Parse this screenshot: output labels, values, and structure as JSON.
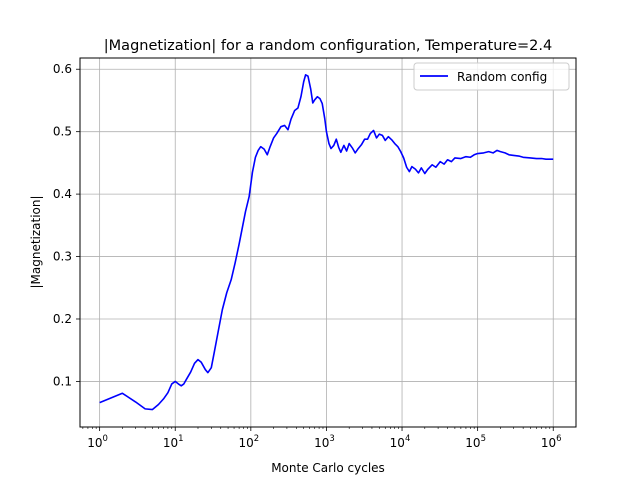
{
  "chart_data": {
    "type": "line",
    "title": "|Magnetization| for a random configuration, Temperature=2.4",
    "xlabel": "Monte Carlo cycles",
    "ylabel": "|Magnetization|",
    "xscale": "log",
    "xlim": [
      0.55,
      2000000
    ],
    "ylim": [
      0.027,
      0.618
    ],
    "grid": true,
    "legend": "top-right",
    "xticks": [
      {
        "value": 1,
        "base": "10",
        "exp": "0"
      },
      {
        "value": 10,
        "base": "10",
        "exp": "1"
      },
      {
        "value": 100,
        "base": "10",
        "exp": "2"
      },
      {
        "value": 1000,
        "base": "10",
        "exp": "3"
      },
      {
        "value": 10000,
        "base": "10",
        "exp": "4"
      },
      {
        "value": 100000,
        "base": "10",
        "exp": "5"
      },
      {
        "value": 1000000,
        "base": "10",
        "exp": "6"
      }
    ],
    "yticks": [
      {
        "value": 0.1,
        "label": "0.1"
      },
      {
        "value": 0.2,
        "label": "0.2"
      },
      {
        "value": 0.3,
        "label": "0.3"
      },
      {
        "value": 0.4,
        "label": "0.4"
      },
      {
        "value": 0.5,
        "label": "0.5"
      },
      {
        "value": 0.6,
        "label": "0.6"
      }
    ],
    "series": [
      {
        "name": "Random config",
        "color": "#0000ff",
        "points": [
          [
            1,
            0.066
          ],
          [
            2,
            0.081
          ],
          [
            3,
            0.067
          ],
          [
            4,
            0.056
          ],
          [
            5,
            0.055
          ],
          [
            6,
            0.063
          ],
          [
            7,
            0.072
          ],
          [
            8,
            0.082
          ],
          [
            9,
            0.096
          ],
          [
            10,
            0.1
          ],
          [
            11,
            0.096
          ],
          [
            12,
            0.093
          ],
          [
            13,
            0.096
          ],
          [
            14,
            0.103
          ],
          [
            16,
            0.115
          ],
          [
            18,
            0.129
          ],
          [
            20,
            0.135
          ],
          [
            22,
            0.131
          ],
          [
            25,
            0.119
          ],
          [
            27,
            0.114
          ],
          [
            30,
            0.122
          ],
          [
            33,
            0.148
          ],
          [
            37,
            0.18
          ],
          [
            42,
            0.215
          ],
          [
            48,
            0.242
          ],
          [
            55,
            0.263
          ],
          [
            62,
            0.29
          ],
          [
            70,
            0.32
          ],
          [
            76,
            0.342
          ],
          [
            85,
            0.372
          ],
          [
            95,
            0.396
          ],
          [
            105,
            0.435
          ],
          [
            115,
            0.459
          ],
          [
            125,
            0.47
          ],
          [
            135,
            0.476
          ],
          [
            150,
            0.472
          ],
          [
            165,
            0.463
          ],
          [
            180,
            0.476
          ],
          [
            200,
            0.49
          ],
          [
            220,
            0.497
          ],
          [
            250,
            0.508
          ],
          [
            280,
            0.51
          ],
          [
            310,
            0.503
          ],
          [
            340,
            0.52
          ],
          [
            380,
            0.534
          ],
          [
            420,
            0.538
          ],
          [
            460,
            0.556
          ],
          [
            500,
            0.58
          ],
          [
            530,
            0.591
          ],
          [
            570,
            0.589
          ],
          [
            620,
            0.568
          ],
          [
            660,
            0.546
          ],
          [
            700,
            0.551
          ],
          [
            760,
            0.556
          ],
          [
            820,
            0.553
          ],
          [
            880,
            0.545
          ],
          [
            950,
            0.521
          ],
          [
            1000,
            0.5
          ],
          [
            1080,
            0.481
          ],
          [
            1150,
            0.473
          ],
          [
            1250,
            0.478
          ],
          [
            1350,
            0.488
          ],
          [
            1450,
            0.475
          ],
          [
            1550,
            0.467
          ],
          [
            1700,
            0.478
          ],
          [
            1850,
            0.469
          ],
          [
            2000,
            0.481
          ],
          [
            2200,
            0.474
          ],
          [
            2400,
            0.466
          ],
          [
            2600,
            0.472
          ],
          [
            2900,
            0.479
          ],
          [
            3200,
            0.488
          ],
          [
            3500,
            0.488
          ],
          [
            3800,
            0.497
          ],
          [
            4200,
            0.502
          ],
          [
            4600,
            0.49
          ],
          [
            5000,
            0.496
          ],
          [
            5500,
            0.494
          ],
          [
            6000,
            0.486
          ],
          [
            6600,
            0.492
          ],
          [
            7300,
            0.487
          ],
          [
            8000,
            0.481
          ],
          [
            8800,
            0.476
          ],
          [
            9600,
            0.468
          ],
          [
            10500,
            0.458
          ],
          [
            11500,
            0.443
          ],
          [
            12500,
            0.436
          ],
          [
            13500,
            0.444
          ],
          [
            15000,
            0.44
          ],
          [
            16500,
            0.434
          ],
          [
            18000,
            0.442
          ],
          [
            20000,
            0.433
          ],
          [
            22000,
            0.44
          ],
          [
            25000,
            0.447
          ],
          [
            28000,
            0.443
          ],
          [
            32000,
            0.452
          ],
          [
            36000,
            0.448
          ],
          [
            40000,
            0.455
          ],
          [
            45000,
            0.452
          ],
          [
            50000,
            0.458
          ],
          [
            60000,
            0.457
          ],
          [
            70000,
            0.46
          ],
          [
            80000,
            0.459
          ],
          [
            90000,
            0.463
          ],
          [
            100000,
            0.465
          ],
          [
            120000,
            0.466
          ],
          [
            140000,
            0.468
          ],
          [
            160000,
            0.466
          ],
          [
            180000,
            0.47
          ],
          [
            200000,
            0.468
          ],
          [
            230000,
            0.466
          ],
          [
            260000,
            0.463
          ],
          [
            300000,
            0.462
          ],
          [
            350000,
            0.461
          ],
          [
            400000,
            0.459
          ],
          [
            500000,
            0.458
          ],
          [
            600000,
            0.457
          ],
          [
            700000,
            0.457
          ],
          [
            800000,
            0.456
          ],
          [
            1000000,
            0.456
          ]
        ]
      }
    ]
  }
}
